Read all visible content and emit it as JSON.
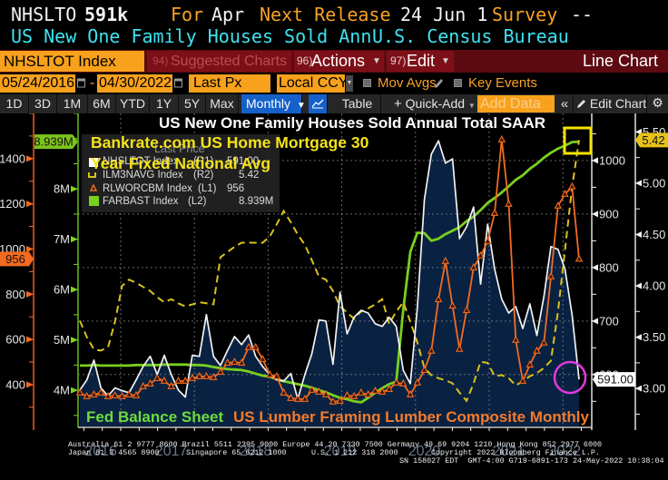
{
  "header": {
    "ticker": "NHSLTO",
    "last_value": "591k",
    "for_label": "For",
    "for_value": "Apr",
    "next_release_label": "Next Release",
    "next_release_value": "24 Jun 1",
    "survey_label": "Survey",
    "survey_value": "--",
    "description": "US New One Family Houses Sold Ann",
    "source": "U.S. Census Bureau"
  },
  "toolbar": {
    "security": "NHSLTOT Index",
    "suggested_num": "94)",
    "suggested_label": "Suggested Charts",
    "actions_num": "96)",
    "actions_label": "Actions",
    "edit_num": "97)",
    "edit_label": "Edit",
    "chart_type": "Line Chart"
  },
  "controls": {
    "start_date": "05/24/2016",
    "date_separator": "-",
    "end_date": "04/30/2022",
    "field": "Last Px",
    "currency": "Local CCY",
    "mov_avgs_label": "Mov Avgs",
    "mov_avgs_checked": false,
    "key_events_label": "Key Events",
    "key_events_checked": false
  },
  "range_bar": {
    "ranges": [
      "1D",
      "3D",
      "1M",
      "6M",
      "YTD",
      "1Y",
      "5Y",
      "Max"
    ],
    "periodicity": "Monthly",
    "table_label": "Table",
    "quick_add_label": "Quick-Add",
    "add_data_placeholder": "Add Data",
    "edit_chart_label": "Edit Chart"
  },
  "chart_annotations": {
    "mortgage_note": [
      "Bankrate.com US Home Mortgage 30",
      "Year Fixed National Avg"
    ],
    "fed_note": "Fed Balance Sheet",
    "lumber_note": "US Lumber Framing Lumber Composite Monthly"
  },
  "chart_data": {
    "type": "line",
    "title": "US New One Family Houses Sold Annual Total SAAR",
    "legend_header": "Last Price",
    "legend": "top-left",
    "grid": true,
    "x": [
      "2016-05",
      "2016-06",
      "2016-07",
      "2016-08",
      "2016-09",
      "2016-10",
      "2016-11",
      "2016-12",
      "2017-01",
      "2017-02",
      "2017-03",
      "2017-04",
      "2017-05",
      "2017-06",
      "2017-07",
      "2017-08",
      "2017-09",
      "2017-10",
      "2017-11",
      "2017-12",
      "2018-01",
      "2018-02",
      "2018-03",
      "2018-04",
      "2018-05",
      "2018-06",
      "2018-07",
      "2018-08",
      "2018-09",
      "2018-10",
      "2018-11",
      "2018-12",
      "2019-01",
      "2019-02",
      "2019-03",
      "2019-04",
      "2019-05",
      "2019-06",
      "2019-07",
      "2019-08",
      "2019-09",
      "2019-10",
      "2019-11",
      "2019-12",
      "2020-01",
      "2020-02",
      "2020-03",
      "2020-04",
      "2020-05",
      "2020-06",
      "2020-07",
      "2020-08",
      "2020-09",
      "2020-10",
      "2020-11",
      "2020-12",
      "2021-01",
      "2021-02",
      "2021-03",
      "2021-04",
      "2021-05",
      "2021-06",
      "2021-07",
      "2021-08",
      "2021-09",
      "2021-10",
      "2021-11",
      "2021-12",
      "2022-01",
      "2022-02",
      "2022-03",
      "2022-04"
    ],
    "x_tick_labels": [
      "2016",
      "2017",
      "2018",
      "2019",
      "2020",
      "2021",
      "2022"
    ],
    "axes": {
      "L1": {
        "range": [
          215,
          1600
        ],
        "ticks": [
          400,
          600,
          800,
          1000,
          1200,
          1400
        ],
        "tick_labels": [
          "400",
          "600",
          "800",
          "1000",
          "1200",
          "1400"
        ],
        "minor_step": 100
      },
      "L2": {
        "range": [
          3.28,
          9.5
        ],
        "ticks": [
          4,
          5,
          6,
          7,
          8
        ],
        "tick_labels": [
          "4M",
          "5M",
          "6M",
          "7M",
          "8M"
        ],
        "minor_step": 0.5
      },
      "R1": {
        "range": [
          503,
          1088
        ],
        "ticks": [
          600,
          700,
          800,
          900,
          1000
        ],
        "tick_labels": [
          "600",
          "700",
          "800",
          "900",
          "1000"
        ],
        "minor_step": 50
      },
      "R2": {
        "range": [
          2.63,
          5.68
        ],
        "ticks": [
          3,
          3.5,
          4,
          4.5,
          5,
          5.5
        ],
        "tick_labels": [
          "3.00",
          "3.50",
          "4.00",
          "4.50",
          "5.00",
          "5.50"
        ],
        "minor_step": 0.25
      }
    },
    "series": [
      {
        "name": "NHSLTOT Index",
        "axis_label": "(R1)",
        "axis": "R1",
        "last": "591.00",
        "values": [
          571,
          590,
          627,
          575,
          560,
          575,
          570,
          566,
          590,
          615,
          634,
          600,
          636,
          600,
          571,
          558,
          636,
          634,
          712,
          634,
          617,
          645,
          671,
          656,
          674,
          634,
          615,
          600,
          590,
          588,
          602,
          554,
          600,
          639,
          702,
          700,
          619,
          754,
          676,
          707,
          720,
          715,
          695,
          690,
          707,
          690,
          608,
          583,
          724,
          927,
          1012,
          1037,
          995,
          1003,
          854,
          876,
          913,
          769,
          881,
          797,
          741,
          715,
          727,
          686,
          732,
          673,
          746,
          839,
          834,
          797,
          712,
          591
        ]
      },
      {
        "name": "ILM3NAVG Index",
        "axis_label": "(R2)",
        "axis": "R2",
        "last": "5.42",
        "values": [
          3.66,
          3.5,
          3.38,
          3.37,
          3.4,
          3.65,
          4.0,
          4.06,
          4.03,
          3.99,
          3.95,
          3.89,
          3.84,
          3.87,
          3.83,
          3.8,
          3.82,
          3.84,
          3.83,
          3.82,
          4.28,
          4.33,
          4.38,
          4.42,
          4.42,
          4.42,
          4.42,
          4.48,
          4.6,
          4.73,
          4.62,
          4.5,
          4.4,
          4.25,
          4.09,
          4.06,
          3.95,
          3.8,
          3.74,
          3.68,
          3.75,
          3.78,
          3.82,
          3.87,
          3.63,
          3.75,
          3.84,
          3.65,
          3.45,
          3.2,
          3.13,
          3.1,
          3.08,
          3.05,
          2.96,
          2.88,
          3.05,
          3.26,
          3.25,
          3.12,
          3.13,
          3.1,
          3.03,
          3.07,
          3.12,
          3.15,
          3.2,
          3.27,
          3.75,
          4.35,
          4.96,
          5.42
        ]
      },
      {
        "name": "RLWORCBM Index",
        "axis_label": "(L1)",
        "axis": "L1",
        "last": "956",
        "values": [
          364,
          348,
          356,
          364,
          348,
          352,
          348,
          356,
          352,
          392,
          404,
          428,
          416,
          392,
          416,
          416,
          428,
          436,
          436,
          432,
          456,
          496,
          500,
          496,
          565,
          565,
          512,
          444,
          436,
          364,
          340,
          336,
          336,
          376,
          368,
          356,
          324,
          328,
          352,
          348,
          364,
          356,
          372,
          368,
          380,
          408,
          404,
          356,
          408,
          464,
          549,
          777,
          946,
          749,
          557,
          729,
          918,
          970,
          1034,
          1159,
          1484,
          1199,
          597,
          416,
          488,
          549,
          585,
          878,
          1191,
          1243,
          1276,
          956
        ]
      },
      {
        "name": "FARBAST Index",
        "axis_label": "(L2)",
        "axis": "L2",
        "last": "8.939M",
        "unit": "M",
        "values": [
          4.49,
          4.49,
          4.5,
          4.49,
          4.49,
          4.49,
          4.49,
          4.49,
          4.5,
          4.5,
          4.5,
          4.5,
          4.51,
          4.51,
          4.51,
          4.51,
          4.5,
          4.5,
          4.49,
          4.46,
          4.44,
          4.42,
          4.41,
          4.4,
          4.37,
          4.33,
          4.29,
          4.27,
          4.22,
          4.18,
          4.15,
          4.12,
          4.09,
          4.05,
          4.0,
          3.96,
          3.9,
          3.85,
          3.82,
          3.78,
          3.76,
          3.85,
          3.95,
          4.04,
          4.12,
          4.17,
          5.6,
          6.75,
          7.13,
          7.12,
          6.97,
          7.01,
          7.1,
          7.17,
          7.24,
          7.36,
          7.45,
          7.58,
          7.72,
          7.82,
          7.93,
          8.05,
          8.18,
          8.27,
          8.4,
          8.5,
          8.62,
          8.72,
          8.8,
          8.86,
          8.93,
          8.939
        ]
      }
    ]
  },
  "footer": {
    "line1": "Australia 61 2 9777 8600 Brazil 5511 2395 9000 Europe 44 20 7330 7500 Germany 49 69 9204 1210 Hong Kong 852 2977 6000",
    "line2": [
      "Japan 81 3 4565 8900",
      "Singapore 65 6212 1000",
      "U.S. 1 212 318 2000",
      "Copyright 2022 Bloomberg Finance L.P."
    ],
    "line3": "SN 158027 EDT  GMT-4:00 G719-6891-173 24-May-2022 10:38:04"
  },
  "colors": {
    "nhsltot": "#f2f2f2",
    "ilm3navg": "#d8c11d",
    "rlworcbm": "#f36b21",
    "farbast": "#78d01f",
    "area_fill": "#0a2242",
    "l1_axis": "#b9440f",
    "l2_axis": "#4e8f1a",
    "l1_tag": "#f46a1f",
    "l2_tag": "#7cc41c",
    "r2_tag": "#e6c21b",
    "r1_tag": "#ffffff",
    "highlight_box": "#f5e400",
    "highlight_circle": "#e03ae0",
    "year_label": "#74849c"
  }
}
